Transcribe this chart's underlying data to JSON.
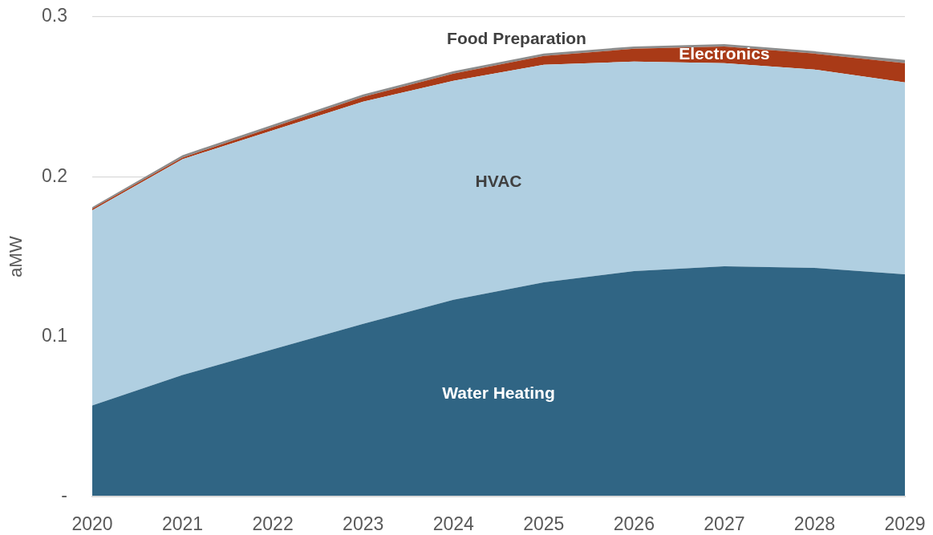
{
  "chart_data": {
    "type": "area",
    "stacked": true,
    "ylabel": "aMW",
    "categories": [
      "2020",
      "2021",
      "2022",
      "2023",
      "2024",
      "2025",
      "2026",
      "2027",
      "2028",
      "2029"
    ],
    "series": [
      {
        "name": "Water Heating",
        "color": "#306584",
        "values": [
          0.057,
          0.076,
          0.092,
          0.108,
          0.123,
          0.134,
          0.141,
          0.144,
          0.143,
          0.139
        ]
      },
      {
        "name": "HVAC",
        "color": "#b0cfe1",
        "values": [
          0.122,
          0.135,
          0.137,
          0.139,
          0.137,
          0.136,
          0.131,
          0.127,
          0.124,
          0.12
        ]
      },
      {
        "name": "Electronics",
        "color": "#a93a17",
        "values": [
          0.001,
          0.001,
          0.002,
          0.003,
          0.0045,
          0.0056,
          0.008,
          0.0105,
          0.01,
          0.012
        ]
      },
      {
        "name": "Food Preparation",
        "color": "#8c8c8c",
        "values": [
          0.001,
          0.0015,
          0.0015,
          0.0015,
          0.0015,
          0.0015,
          0.0015,
          0.0015,
          0.0015,
          0.002
        ]
      }
    ],
    "ylim": [
      0,
      0.3
    ],
    "yticks": [
      {
        "value": 0,
        "label": "-"
      },
      0.1,
      0.2,
      0.3
    ],
    "grid": "y",
    "legend": false,
    "marker": "none"
  }
}
